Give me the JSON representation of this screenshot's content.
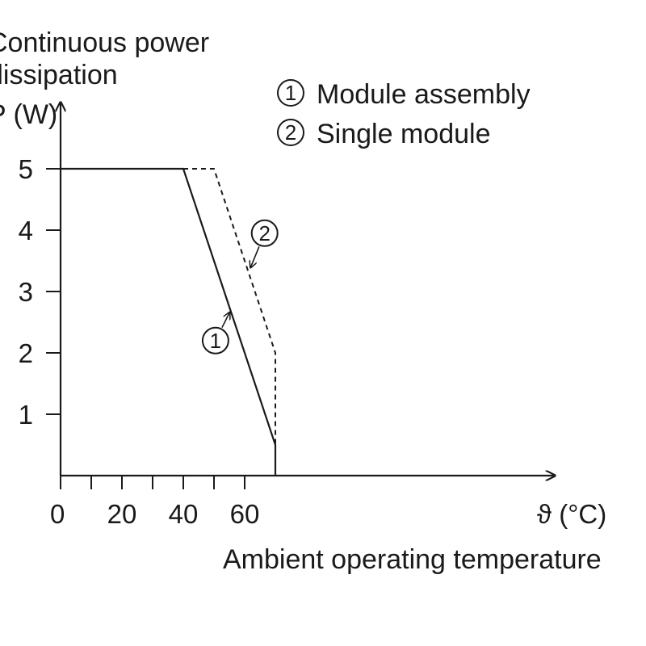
{
  "chart_data": {
    "type": "line",
    "y_title_lines": [
      "Continuous power",
      "dissipation",
      "P (W)"
    ],
    "xlabel": "ϑ (°C)",
    "x_caption": "Ambient operating temperature",
    "xlim": [
      0,
      80
    ],
    "ylim": [
      0,
      5.5
    ],
    "x_tick_labels": [
      "0",
      "20",
      "40",
      "60"
    ],
    "x_ticks_major": [
      0,
      20,
      40,
      60
    ],
    "x_ticks_minor": [
      10,
      30,
      50
    ],
    "y_ticks": [
      1,
      2,
      3,
      4,
      5
    ],
    "y_tick_labels": [
      "1",
      "2",
      "3",
      "4",
      "5"
    ],
    "grid": false,
    "legend": {
      "placement": "top-right",
      "items": [
        {
          "marker": "1",
          "label": "Module assembly"
        },
        {
          "marker": "2",
          "label": "Single module"
        }
      ]
    },
    "series": [
      {
        "marker": "1",
        "style": "solid",
        "x": [
          0,
          40,
          70,
          70
        ],
        "y": [
          5,
          5,
          0.5,
          0
        ]
      },
      {
        "marker": "2",
        "style": "dashed",
        "x": [
          40,
          50,
          70,
          70
        ],
        "y": [
          5,
          5,
          2,
          0.5
        ]
      }
    ],
    "annotations": [
      {
        "marker": "1",
        "at": [
          55,
          2.65
        ],
        "label_at": [
          50.5,
          2.2
        ]
      },
      {
        "marker": "2",
        "at": [
          62,
          3.4
        ],
        "label_at": [
          66.5,
          3.95
        ]
      }
    ]
  }
}
